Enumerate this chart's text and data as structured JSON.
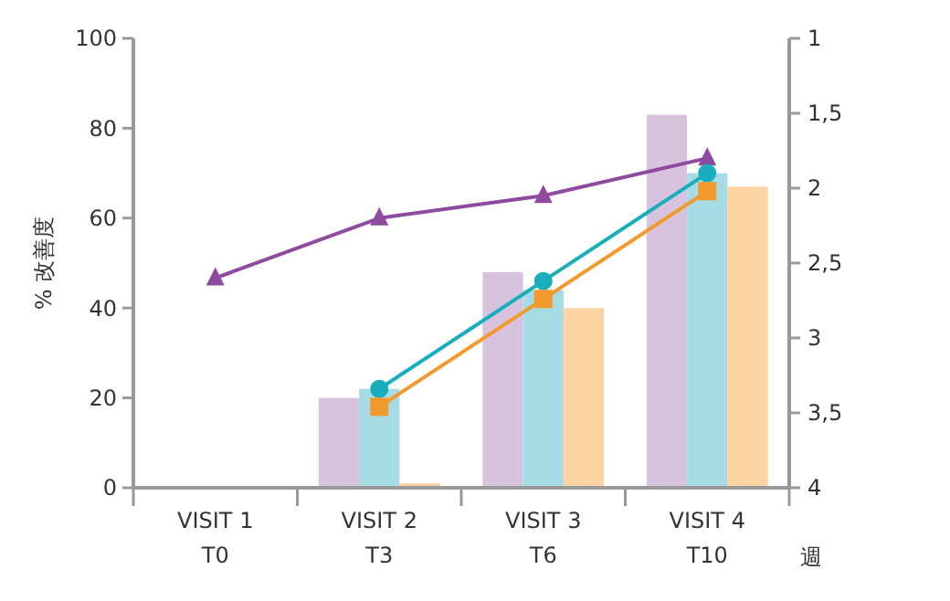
{
  "chart_data": {
    "type": "bar",
    "ylabel": "% 改善度",
    "xlabel": "週",
    "categories": [
      "VISIT 1\nT0",
      "VISIT 2\nT3",
      "VISIT 3\nT6",
      "VISIT 4\nT10"
    ],
    "ylim": [
      0,
      100
    ],
    "yticks": [
      0,
      20,
      40,
      60,
      80,
      100
    ],
    "y2lim": [
      4,
      1
    ],
    "y2ticks": [
      {
        "value": 4,
        "label": "4"
      },
      {
        "value": 3.5,
        "label": "3,5"
      },
      {
        "value": 3,
        "label": "3"
      },
      {
        "value": 2.5,
        "label": "2,5"
      },
      {
        "value": 2,
        "label": "2"
      },
      {
        "value": 1.5,
        "label": "1,5"
      },
      {
        "value": 1,
        "label": "1"
      }
    ],
    "grid": false,
    "series": [
      {
        "color": "#d8c3df",
        "values": [
          null,
          20,
          48,
          83
        ]
      },
      {
        "color": "#a6dce6",
        "values": [
          null,
          22,
          44,
          70
        ]
      },
      {
        "color": "#fdd3a4",
        "values": [
          null,
          1,
          40,
          67
        ]
      },
      {
        "type": "line",
        "color": "#8e4a9f",
        "axis": "y2",
        "marker": "triangle",
        "values": [
          2.6,
          2.2,
          2.05,
          1.8
        ]
      },
      {
        "type": "line",
        "color": "#1aaebd",
        "marker": "circle",
        "values": [
          null,
          22,
          46,
          70
        ]
      },
      {
        "type": "line",
        "color": "#f29a2e",
        "marker": "square",
        "values": [
          null,
          18,
          42,
          66
        ]
      }
    ]
  }
}
